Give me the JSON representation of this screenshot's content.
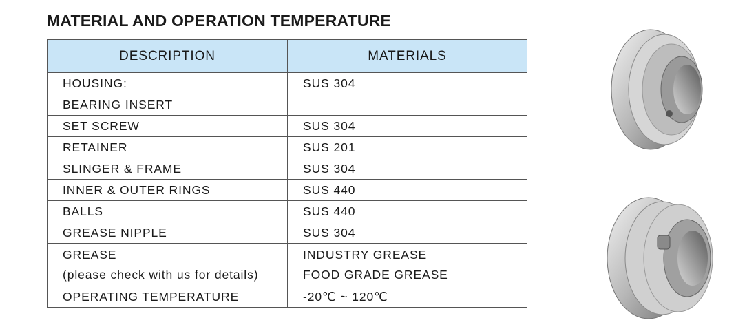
{
  "title": "MATERIAL AND OPERATION TEMPERATURE",
  "table": {
    "headers": [
      "DESCRIPTION",
      "MATERIALS"
    ],
    "rows": [
      [
        "HOUSING:",
        "SUS 304"
      ],
      [
        "BEARING INSERT"
      ],
      [
        "SET SCREW",
        "SUS 304"
      ],
      [
        "RETAINER",
        "SUS 201"
      ],
      [
        "SLINGER & FRAME",
        "SUS 304"
      ],
      [
        "INNER & OUTER RINGS",
        "SUS 440"
      ],
      [
        "BALLS",
        "SUS 440"
      ],
      [
        "GREASE NIPPLE",
        "SUS 304"
      ],
      [
        [
          "GREASE",
          "(please check with us for details)"
        ],
        [
          "INDUSTRY GREASE",
          "FOOD GRADE GREASE"
        ]
      ],
      [
        "OPERATING TEMPERATURE",
        "-20℃ ~ 120℃"
      ]
    ]
  }
}
